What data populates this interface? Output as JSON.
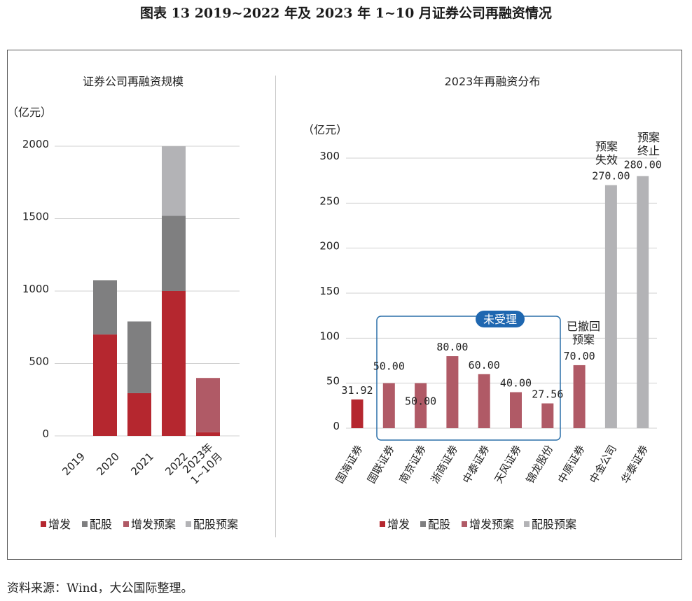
{
  "figure_title": "图表 13 2019~2022 年及 2023 年 1~10 月证券公司再融资情况",
  "source": "资料来源：Wind，大公国际整理。",
  "colors": {
    "增发": "#b5272f",
    "配股": "#7f7f80",
    "增发预案": "#b05a66",
    "配股预案": "#b3b3b6",
    "box": "#2a6fa8",
    "badge_bg": "#1f67b0"
  },
  "chart_data": [
    {
      "type": "bar",
      "stacked": true,
      "title": "证券公司再融资规模",
      "unit": "（亿元）",
      "ylim": [
        0,
        2000
      ],
      "yticks": [
        "0",
        "500",
        "1000",
        "1500",
        "2000"
      ],
      "categories": [
        "2019",
        "2020",
        "2021",
        "2022",
        "2023年\n1~10月"
      ],
      "series": [
        {
          "name": "增发",
          "values": [
            0,
            700,
            295,
            1000,
            25
          ]
        },
        {
          "name": "配股",
          "values": [
            0,
            375,
            495,
            520,
            0
          ]
        },
        {
          "name": "增发预案",
          "values": [
            0,
            0,
            0,
            0,
            375
          ]
        },
        {
          "name": "配股预案",
          "values": [
            0,
            0,
            0,
            480,
            0
          ]
        }
      ],
      "legend": [
        "增发",
        "配股",
        "增发预案",
        "配股预案"
      ],
      "legend_position": "bottom",
      "grid": true
    },
    {
      "type": "bar",
      "title": "2023年再融资分布",
      "unit": "（亿元）",
      "ylim": [
        0,
        300
      ],
      "yticks": [
        "0",
        "50",
        "100",
        "150",
        "200",
        "250",
        "300"
      ],
      "categories": [
        "国海证券",
        "国联证券",
        "南京证券",
        "浙商证券",
        "中泰证券",
        "天风证券",
        "锦龙股份",
        "中原证券",
        "中金公司",
        "华泰证券"
      ],
      "values": [
        31.92,
        50.0,
        50.0,
        80.0,
        60.0,
        40.0,
        27.56,
        70.0,
        270.0,
        280.0
      ],
      "labels": [
        "31.92",
        "50.00",
        "50.00",
        "80.00",
        "60.00",
        "40.00",
        "27.56",
        "70.00",
        "270.00",
        "280.00"
      ],
      "bar_types": [
        "增发",
        "增发预案",
        "增发预案",
        "增发预案",
        "增发预案",
        "增发预案",
        "增发预案",
        "增发预案",
        "配股预案",
        "配股预案"
      ],
      "annotations": {
        "box_label": "未受理",
        "withdrawn": [
          "已撤回",
          "预案"
        ],
        "lapsed": [
          "预案",
          "失效"
        ],
        "terminated": [
          "预案",
          "终止"
        ]
      },
      "legend": [
        "增发",
        "配股",
        "增发预案",
        "配股预案"
      ],
      "legend_position": "bottom",
      "grid": true
    }
  ]
}
